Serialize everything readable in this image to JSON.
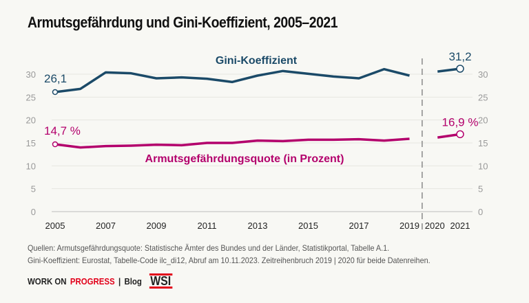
{
  "chart_data": {
    "type": "line",
    "title": "Armutsgefährdung und Gini-Koeffizient, 2005–2021",
    "x": [
      2005,
      2006,
      2007,
      2008,
      2009,
      2010,
      2011,
      2012,
      2013,
      2014,
      2015,
      2016,
      2017,
      2018,
      2019,
      2020,
      2021
    ],
    "x_tick_labels": [
      "2005",
      "2007",
      "2009",
      "2011",
      "2013",
      "2015",
      "2017",
      "2019",
      "2020",
      "2021"
    ],
    "ylim": [
      0,
      30
    ],
    "y_ticks": [
      0,
      5,
      10,
      15,
      20,
      25,
      30
    ],
    "y_tick_labels": [
      "0",
      "5",
      "10",
      "15",
      "20",
      "25",
      "30"
    ],
    "grid": true,
    "series_break_between": [
      2019,
      2020
    ],
    "series": [
      {
        "name": "Gini-Koeffizient",
        "color": "#1b4a68",
        "values": [
          26.1,
          26.8,
          30.4,
          30.2,
          29.1,
          29.3,
          29.0,
          28.3,
          29.7,
          30.7,
          30.1,
          29.5,
          29.1,
          31.1,
          29.7,
          30.5,
          31.2
        ],
        "start_label": "26,1",
        "end_label": "31,2"
      },
      {
        "name": "Armutsgefährdungsquote (in Prozent)",
        "color": "#b3006c",
        "values": [
          14.7,
          14.0,
          14.3,
          14.4,
          14.6,
          14.5,
          15.0,
          15.0,
          15.5,
          15.4,
          15.7,
          15.7,
          15.8,
          15.5,
          15.9,
          16.1,
          16.9
        ],
        "start_label": "14,7 %",
        "end_label": "16,9 %"
      }
    ]
  },
  "sources": {
    "line1": "Quellen: Armutsgefährdungsquote: Statistische Ämter des Bundes und der Länder, Statistikportal, Tabelle A.1.",
    "line2": "Gini-Koeffizient: Eurostat, Tabelle-Code ilc_di12, Abruf am 10.11.2023. Zeitreihenbruch 2019 | 2020 für beide Datenreihen."
  },
  "footer": {
    "work_on": "WORK ON",
    "progress": "PROGRESS",
    "sep": "|",
    "blog": "Blog",
    "logo": "WSI"
  }
}
